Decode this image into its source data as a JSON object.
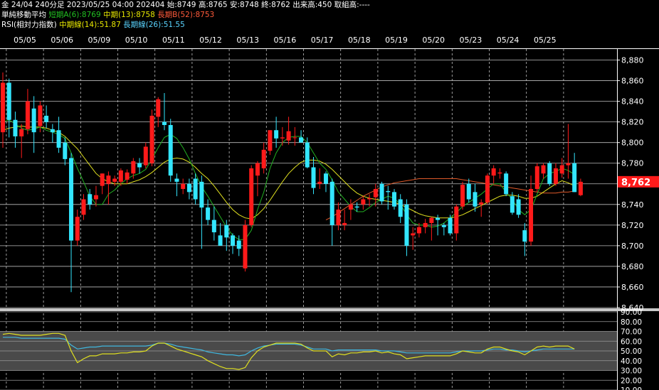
{
  "header": {
    "contract": "金 24/04 240分足 2023/05/25 04:00 202404",
    "open_label": "始:",
    "open": "8749",
    "high_label": "高:",
    "high": "8765",
    "low_label": "安:",
    "low": "8748",
    "close_label": "終:",
    "close": "8762",
    "volume": "出来高:450",
    "oi": "取組高:----",
    "ma_title": "単純移動平均",
    "ma_short": "短期A(6):8769",
    "ma_mid": "中期(13):8758",
    "ma_long": "長期B(52):8753",
    "rsi_title": "RSI(相対力指数)",
    "rsi_mid": "中期線(14):51.87",
    "rsi_long": "長期線(26):51.55"
  },
  "colors": {
    "up": "#ff1a1a",
    "down": "#33e6ff",
    "ma_short": "#22b022",
    "ma_mid": "#e0e020",
    "ma_long": "#e05a2a",
    "rsi_mid": "#e0e020",
    "rsi_long": "#40b8e0",
    "price_tag": "#ff1a1a"
  },
  "chart_data": [
    {
      "type": "candlestick",
      "dates": [
        "05/05",
        "05/06",
        "05/09",
        "05/10",
        "05/11",
        "05/12",
        "05/13",
        "05/16",
        "05/17",
        "05/18",
        "05/19",
        "05/20",
        "05/23",
        "05/24",
        "05/25"
      ],
      "ylim": [
        8640,
        8890
      ],
      "yticks": [
        8640,
        8660,
        8680,
        8700,
        8720,
        8740,
        8760,
        8780,
        8800,
        8820,
        8840,
        8860,
        8880
      ],
      "ytick_labels": [
        "8,640",
        "8,660",
        "8,680",
        "8,700",
        "8,720",
        "8,740",
        "8,760",
        "8,780",
        "8,800",
        "8,820",
        "8,840",
        "8,860",
        "8,880"
      ],
      "last_price": 8762,
      "last_price_label": "8,762",
      "candles": [
        {
          "o": 8810,
          "h": 8868,
          "l": 8795,
          "c": 8858
        },
        {
          "o": 8858,
          "h": 8862,
          "l": 8805,
          "c": 8822
        },
        {
          "o": 8822,
          "h": 8830,
          "l": 8795,
          "c": 8806
        },
        {
          "o": 8806,
          "h": 8818,
          "l": 8785,
          "c": 8813
        },
        {
          "o": 8813,
          "h": 8852,
          "l": 8808,
          "c": 8840
        },
        {
          "o": 8833,
          "h": 8845,
          "l": 8790,
          "c": 8810
        },
        {
          "o": 8816,
          "h": 8840,
          "l": 8810,
          "c": 8836
        },
        {
          "o": 8826,
          "h": 8836,
          "l": 8814,
          "c": 8820
        },
        {
          "o": 8813,
          "h": 8818,
          "l": 8800,
          "c": 8810
        },
        {
          "o": 8812,
          "h": 8825,
          "l": 8790,
          "c": 8795
        },
        {
          "o": 8800,
          "h": 8805,
          "l": 8778,
          "c": 8784
        },
        {
          "o": 8785,
          "h": 8790,
          "l": 8655,
          "c": 8705
        },
        {
          "o": 8705,
          "h": 8735,
          "l": 8700,
          "c": 8728
        },
        {
          "o": 8730,
          "h": 8750,
          "l": 8725,
          "c": 8745
        },
        {
          "o": 8750,
          "h": 8755,
          "l": 8735,
          "c": 8740
        },
        {
          "o": 8745,
          "h": 8758,
          "l": 8738,
          "c": 8749
        },
        {
          "o": 8758,
          "h": 8770,
          "l": 8750,
          "c": 8770
        },
        {
          "o": 8760,
          "h": 8772,
          "l": 8740,
          "c": 8768
        },
        {
          "o": 8762,
          "h": 8768,
          "l": 8758,
          "c": 8765
        },
        {
          "o": 8762,
          "h": 8775,
          "l": 8758,
          "c": 8773
        },
        {
          "o": 8764,
          "h": 8774,
          "l": 8760,
          "c": 8771
        },
        {
          "o": 8770,
          "h": 8785,
          "l": 8765,
          "c": 8782
        },
        {
          "o": 8780,
          "h": 8785,
          "l": 8770,
          "c": 8776
        },
        {
          "o": 8778,
          "h": 8800,
          "l": 8775,
          "c": 8796
        },
        {
          "o": 8780,
          "h": 8832,
          "l": 8777,
          "c": 8826
        },
        {
          "o": 8825,
          "h": 8844,
          "l": 8815,
          "c": 8842
        },
        {
          "o": 8820,
          "h": 8848,
          "l": 8812,
          "c": 8817
        },
        {
          "o": 8817,
          "h": 8823,
          "l": 8762,
          "c": 8768
        },
        {
          "o": 8765,
          "h": 8770,
          "l": 8748,
          "c": 8762
        },
        {
          "o": 8755,
          "h": 8765,
          "l": 8750,
          "c": 8760
        },
        {
          "o": 8760,
          "h": 8765,
          "l": 8745,
          "c": 8752
        },
        {
          "o": 8765,
          "h": 8770,
          "l": 8740,
          "c": 8745
        },
        {
          "o": 8762,
          "h": 8768,
          "l": 8697,
          "c": 8737
        },
        {
          "o": 8737,
          "h": 8745,
          "l": 8720,
          "c": 8725
        },
        {
          "o": 8725,
          "h": 8738,
          "l": 8705,
          "c": 8713
        },
        {
          "o": 8710,
          "h": 8722,
          "l": 8700,
          "c": 8700
        },
        {
          "o": 8720,
          "h": 8725,
          "l": 8695,
          "c": 8708
        },
        {
          "o": 8710,
          "h": 8712,
          "l": 8692,
          "c": 8700
        },
        {
          "o": 8705,
          "h": 8710,
          "l": 8690,
          "c": 8697
        },
        {
          "o": 8678,
          "h": 8725,
          "l": 8675,
          "c": 8720
        },
        {
          "o": 8720,
          "h": 8778,
          "l": 8718,
          "c": 8775
        },
        {
          "o": 8768,
          "h": 8782,
          "l": 8748,
          "c": 8780
        },
        {
          "o": 8775,
          "h": 8800,
          "l": 8770,
          "c": 8793
        },
        {
          "o": 8792,
          "h": 8812,
          "l": 8788,
          "c": 8812
        },
        {
          "o": 8812,
          "h": 8825,
          "l": 8795,
          "c": 8804
        },
        {
          "o": 8804,
          "h": 8815,
          "l": 8797,
          "c": 8805
        },
        {
          "o": 8802,
          "h": 8825,
          "l": 8798,
          "c": 8811
        },
        {
          "o": 8805,
          "h": 8815,
          "l": 8797,
          "c": 8805
        },
        {
          "o": 8805,
          "h": 8812,
          "l": 8800,
          "c": 8800
        },
        {
          "o": 8800,
          "h": 8805,
          "l": 8775,
          "c": 8776
        },
        {
          "o": 8776,
          "h": 8786,
          "l": 8750,
          "c": 8756
        },
        {
          "o": 8760,
          "h": 8775,
          "l": 8755,
          "c": 8762
        },
        {
          "o": 8770,
          "h": 8772,
          "l": 8752,
          "c": 8760
        },
        {
          "o": 8762,
          "h": 8765,
          "l": 8700,
          "c": 8720
        },
        {
          "o": 8720,
          "h": 8742,
          "l": 8715,
          "c": 8735
        },
        {
          "o": 8720,
          "h": 8735,
          "l": 8715,
          "c": 8722
        },
        {
          "o": 8735,
          "h": 8745,
          "l": 8725,
          "c": 8740
        },
        {
          "o": 8738,
          "h": 8742,
          "l": 8733,
          "c": 8737
        },
        {
          "o": 8740,
          "h": 8748,
          "l": 8735,
          "c": 8745
        },
        {
          "o": 8745,
          "h": 8750,
          "l": 8738,
          "c": 8746
        },
        {
          "o": 8747,
          "h": 8760,
          "l": 8738,
          "c": 8755
        },
        {
          "o": 8760,
          "h": 8762,
          "l": 8740,
          "c": 8743
        },
        {
          "o": 8753,
          "h": 8758,
          "l": 8735,
          "c": 8752
        },
        {
          "o": 8752,
          "h": 8755,
          "l": 8735,
          "c": 8738
        },
        {
          "o": 8745,
          "h": 8750,
          "l": 8722,
          "c": 8728
        },
        {
          "o": 8740,
          "h": 8745,
          "l": 8690,
          "c": 8700
        },
        {
          "o": 8710,
          "h": 8718,
          "l": 8696,
          "c": 8712
        },
        {
          "o": 8712,
          "h": 8722,
          "l": 8708,
          "c": 8718
        },
        {
          "o": 8718,
          "h": 8726,
          "l": 8712,
          "c": 8722
        },
        {
          "o": 8722,
          "h": 8728,
          "l": 8705,
          "c": 8727
        },
        {
          "o": 8727,
          "h": 8730,
          "l": 8710,
          "c": 8725
        },
        {
          "o": 8720,
          "h": 8722,
          "l": 8710,
          "c": 8718
        },
        {
          "o": 8727,
          "h": 8730,
          "l": 8710,
          "c": 8712
        },
        {
          "o": 8712,
          "h": 8740,
          "l": 8705,
          "c": 8738
        },
        {
          "o": 8738,
          "h": 8762,
          "l": 8735,
          "c": 8759
        },
        {
          "o": 8760,
          "h": 8765,
          "l": 8742,
          "c": 8745
        },
        {
          "o": 8752,
          "h": 8760,
          "l": 8733,
          "c": 8738
        },
        {
          "o": 8740,
          "h": 8745,
          "l": 8728,
          "c": 8742
        },
        {
          "o": 8742,
          "h": 8770,
          "l": 8740,
          "c": 8768
        },
        {
          "o": 8768,
          "h": 8778,
          "l": 8760,
          "c": 8775
        },
        {
          "o": 8770,
          "h": 8775,
          "l": 8765,
          "c": 8771
        },
        {
          "o": 8770,
          "h": 8772,
          "l": 8748,
          "c": 8750
        },
        {
          "o": 8748,
          "h": 8752,
          "l": 8730,
          "c": 8732
        },
        {
          "o": 8745,
          "h": 8750,
          "l": 8727,
          "c": 8730
        },
        {
          "o": 8715,
          "h": 8722,
          "l": 8690,
          "c": 8704
        },
        {
          "o": 8704,
          "h": 8768,
          "l": 8700,
          "c": 8755
        },
        {
          "o": 8755,
          "h": 8780,
          "l": 8752,
          "c": 8777
        },
        {
          "o": 8770,
          "h": 8780,
          "l": 8765,
          "c": 8778
        },
        {
          "o": 8780,
          "h": 8782,
          "l": 8758,
          "c": 8760
        },
        {
          "o": 8760,
          "h": 8780,
          "l": 8758,
          "c": 8775
        },
        {
          "o": 8770,
          "h": 8785,
          "l": 8766,
          "c": 8778
        },
        {
          "o": 8778,
          "h": 8818,
          "l": 8765,
          "c": 8780
        },
        {
          "o": 8780,
          "h": 8790,
          "l": 8752,
          "c": 8752
        },
        {
          "o": 8749,
          "h": 8765,
          "l": 8748,
          "c": 8762
        }
      ],
      "ma_short": [
        8820,
        8822,
        8818,
        8814,
        8812,
        8813,
        8815,
        8812,
        8810,
        8808,
        8804,
        8790,
        8775,
        8762,
        8748,
        8740,
        8740,
        8750,
        8754,
        8760,
        8765,
        8768,
        8770,
        8774,
        8784,
        8795,
        8805,
        8808,
        8804,
        8795,
        8784,
        8770,
        8757,
        8748,
        8738,
        8728,
        8718,
        8710,
        8706,
        8706,
        8715,
        8735,
        8752,
        8775,
        8790,
        8800,
        8805,
        8806,
        8806,
        8800,
        8790,
        8780,
        8774,
        8764,
        8752,
        8745,
        8738,
        8733,
        8733,
        8737,
        8742,
        8745,
        8748,
        8746,
        8740,
        8730,
        8722,
        8720,
        8720,
        8718,
        8719,
        8722,
        8727,
        8732,
        8738,
        8742,
        8746,
        8750,
        8755,
        8760,
        8760,
        8752,
        8745,
        8735,
        8730,
        8735,
        8750,
        8765,
        8770,
        8772,
        8775,
        8773,
        8769
      ],
      "ma_mid": [
        8812,
        8814,
        8815,
        8816,
        8815,
        8815,
        8815,
        8814,
        8812,
        8810,
        8806,
        8800,
        8794,
        8786,
        8778,
        8770,
        8765,
        8762,
        8760,
        8760,
        8760,
        8762,
        8764,
        8767,
        8771,
        8776,
        8781,
        8784,
        8785,
        8784,
        8781,
        8776,
        8770,
        8765,
        8758,
        8750,
        8742,
        8735,
        8730,
        8727,
        8726,
        8730,
        8736,
        8744,
        8753,
        8762,
        8770,
        8776,
        8781,
        8783,
        8783,
        8782,
        8779,
        8774,
        8768,
        8762,
        8756,
        8751,
        8748,
        8746,
        8745,
        8744,
        8743,
        8742,
        8740,
        8737,
        8734,
        8731,
        8729,
        8728,
        8727,
        8727,
        8727,
        8728,
        8730,
        8733,
        8736,
        8739,
        8742,
        8745,
        8748,
        8749,
        8749,
        8748,
        8746,
        8746,
        8748,
        8752,
        8756,
        8760,
        8763,
        8761,
        8758
      ],
      "ma_long": [
        null,
        null,
        null,
        null,
        null,
        null,
        null,
        null,
        null,
        null,
        null,
        null,
        null,
        null,
        null,
        null,
        null,
        null,
        null,
        null,
        null,
        null,
        null,
        null,
        null,
        null,
        null,
        null,
        null,
        null,
        null,
        null,
        null,
        null,
        null,
        null,
        null,
        null,
        null,
        null,
        null,
        null,
        null,
        null,
        null,
        null,
        null,
        null,
        null,
        null,
        null,
        null,
        8725,
        8728,
        8732,
        8736,
        8740,
        8744,
        8748,
        8751,
        8754,
        8757,
        8759,
        8761,
        8762,
        8763,
        8764,
        8765,
        8765,
        8765,
        8765,
        8765,
        8765,
        8765,
        8764,
        8763,
        8762,
        8761,
        8760,
        8759,
        8758,
        8757,
        8756,
        8755,
        8754,
        8753,
        8752,
        8751,
        8751,
        8751,
        8752,
        8752,
        8753
      ]
    },
    {
      "type": "line",
      "name_label": "RSI",
      "ylim": [
        10,
        90
      ],
      "yticks": [
        10,
        20,
        30,
        40,
        50,
        60,
        70,
        80,
        90
      ],
      "ytick_labels": [
        "10.00",
        "20.00",
        "30.00",
        "40.00",
        "50.00",
        "60.00",
        "70.00",
        "80.00",
        "90.00"
      ],
      "rsi_mid": [
        67,
        68,
        67,
        66,
        66,
        66,
        66,
        67,
        68,
        68,
        66,
        50,
        38,
        42,
        45,
        45,
        47,
        47,
        47,
        48,
        48,
        49,
        49,
        50,
        55,
        58,
        58,
        55,
        52,
        50,
        48,
        46,
        44,
        40,
        37,
        34,
        32,
        32,
        31,
        33,
        43,
        50,
        54,
        56,
        58,
        58,
        58,
        58,
        57,
        53,
        50,
        50,
        50,
        44,
        47,
        46,
        48,
        48,
        49,
        49,
        50,
        48,
        49,
        47,
        46,
        42,
        43,
        44,
        45,
        45,
        45,
        45,
        45,
        47,
        50,
        49,
        48,
        48,
        52,
        54,
        54,
        52,
        50,
        49,
        46,
        50,
        54,
        55,
        54,
        55,
        55,
        55,
        52
      ],
      "rsi_long": [
        64,
        64,
        64,
        63,
        63,
        63,
        63,
        63,
        63,
        63,
        62,
        56,
        52,
        53,
        54,
        54,
        55,
        55,
        55,
        55,
        55,
        55,
        55,
        55,
        56,
        58,
        58,
        57,
        55,
        54,
        53,
        52,
        51,
        49,
        48,
        47,
        46,
        46,
        45,
        46,
        50,
        53,
        55,
        56,
        57,
        57,
        57,
        57,
        56,
        54,
        52,
        52,
        52,
        50,
        51,
        51,
        51,
        51,
        51,
        51,
        51,
        50,
        50,
        50,
        49,
        48,
        48,
        48,
        48,
        48,
        48,
        48,
        48,
        49,
        50,
        50,
        50,
        50,
        51,
        52,
        52,
        51,
        51,
        50,
        49,
        50,
        51,
        52,
        52,
        52,
        52,
        52,
        52
      ]
    }
  ]
}
